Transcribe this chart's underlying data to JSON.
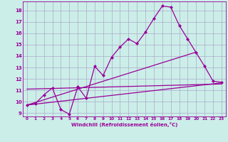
{
  "xlabel": "Windchill (Refroidissement éolien,°C)",
  "bg_color": "#cceee8",
  "grid_color": "#aaaacc",
  "line_color": "#990099",
  "xlim": [
    -0.5,
    23.5
  ],
  "ylim": [
    8.7,
    18.8
  ],
  "yticks": [
    9,
    10,
    11,
    12,
    13,
    14,
    15,
    16,
    17,
    18
  ],
  "xticks": [
    0,
    1,
    2,
    3,
    4,
    5,
    6,
    7,
    8,
    9,
    10,
    11,
    12,
    13,
    14,
    15,
    16,
    17,
    18,
    19,
    20,
    21,
    22,
    23
  ],
  "main_series_x": [
    0,
    1,
    2,
    3,
    4,
    5,
    6,
    7,
    8,
    9,
    10,
    11,
    12,
    13,
    14,
    15,
    16,
    17,
    18,
    19,
    20,
    21,
    22,
    23
  ],
  "main_series_y": [
    9.7,
    9.85,
    10.6,
    11.2,
    9.3,
    8.9,
    11.3,
    10.3,
    13.1,
    12.3,
    13.9,
    14.8,
    15.5,
    15.1,
    16.1,
    17.3,
    18.4,
    18.3,
    16.7,
    15.5,
    14.3,
    13.1,
    11.8,
    11.7
  ],
  "line1_x": [
    0,
    23
  ],
  "line1_y": [
    9.7,
    11.65
  ],
  "line2_x": [
    0,
    20
  ],
  "line2_y": [
    9.7,
    14.35
  ],
  "line3_x": [
    0,
    23
  ],
  "line3_y": [
    11.1,
    11.55
  ]
}
